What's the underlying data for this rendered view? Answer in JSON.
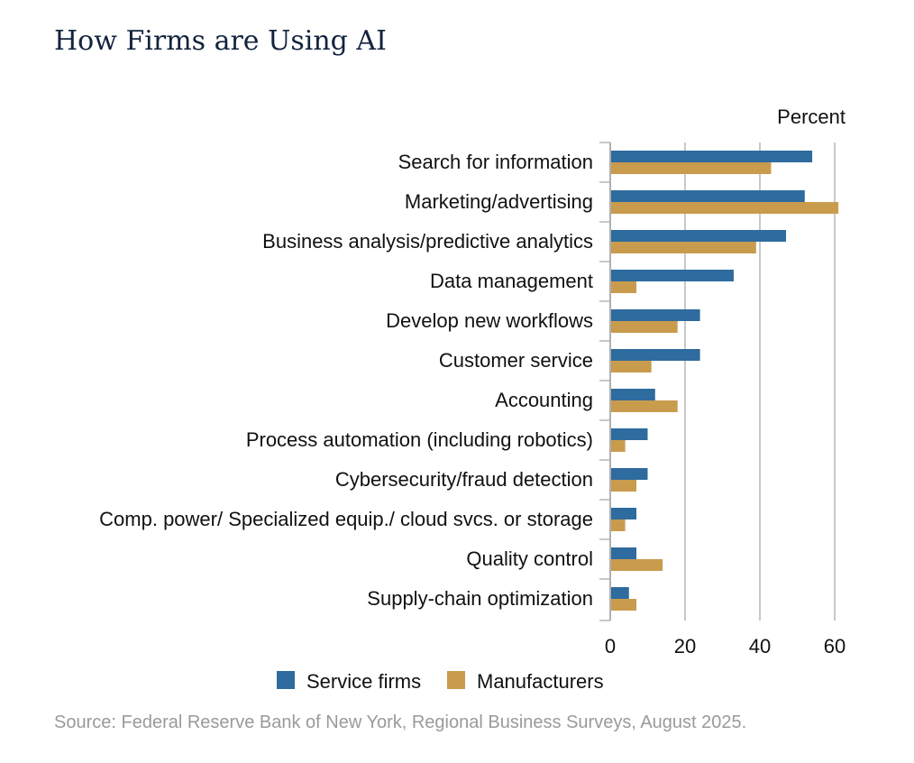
{
  "title": "How Firms are Using AI",
  "source": "Source: Federal Reserve Bank of New York, Regional Business Surveys, August 2025.",
  "chart_data": {
    "type": "bar",
    "orientation": "horizontal",
    "unit_label": "Percent",
    "categories": [
      "Search for information",
      "Marketing/advertising",
      "Business analysis/predictive analytics",
      "Data management",
      "Develop new workflows",
      "Customer service",
      "Accounting",
      "Process automation (including robotics)",
      "Cybersecurity/fraud detection",
      "Comp. power/ Specialized equip./ cloud svcs. or storage",
      "Quality control",
      "Supply-chain optimization"
    ],
    "series": [
      {
        "name": "Service firms",
        "color": "#2e6b9e",
        "values": [
          54,
          52,
          47,
          33,
          24,
          24,
          12,
          10,
          10,
          7,
          7,
          5
        ]
      },
      {
        "name": "Manufacturers",
        "color": "#c99b4d",
        "values": [
          43,
          61,
          39,
          7,
          18,
          11,
          18,
          4,
          7,
          4,
          14,
          7
        ]
      }
    ],
    "xlim": [
      0,
      62
    ],
    "xticks": [
      0,
      20,
      40,
      60
    ],
    "grid": true,
    "legend_position": "bottom"
  }
}
